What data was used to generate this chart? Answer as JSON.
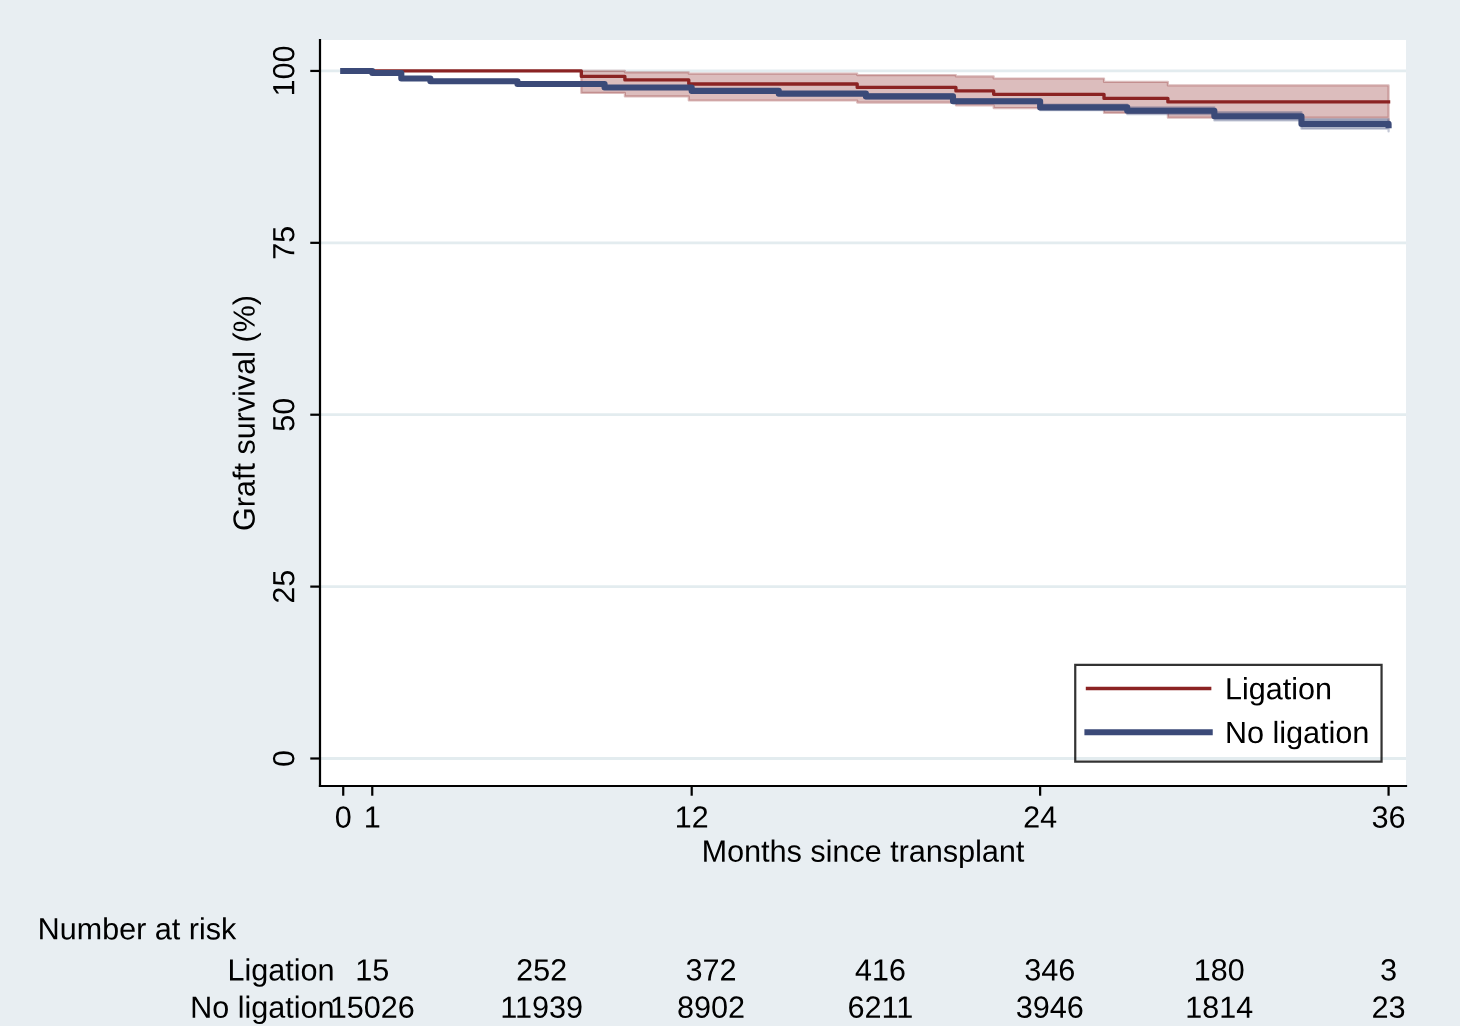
{
  "chart_data": {
    "type": "step",
    "xlabel": "Months since transplant",
    "ylabel": "Graft survival (%)",
    "xlim": [
      -0.8,
      36.6
    ],
    "ylim": [
      -4,
      104.5
    ],
    "xticks": [
      0,
      1,
      12,
      24,
      36
    ],
    "yticks": [
      0,
      25,
      50,
      75,
      100
    ],
    "grid": "y",
    "legend": "bottom right",
    "series": [
      {
        "name": "Ligation",
        "color": "#8b2323",
        "x": [
          0,
          8.2,
          9.7,
          11.9,
          17.7,
          21.1,
          22.4,
          26.2,
          28.4,
          36
        ],
        "values": [
          100,
          99.2,
          98.7,
          98.1,
          97.6,
          97.1,
          96.6,
          96.0,
          95.5,
          95.5
        ],
        "lower": [
          null,
          96.8,
          96.3,
          95.7,
          95.4,
          95.0,
          94.6,
          93.9,
          93.2,
          91.9
        ],
        "upper": [
          null,
          100,
          99.8,
          99.6,
          99.4,
          99.2,
          98.9,
          98.4,
          97.9,
          97.3
        ]
      },
      {
        "name": "No ligation",
        "color": "#3b4a78",
        "x": [
          0,
          1,
          2,
          3,
          6,
          9,
          12,
          15,
          18,
          21,
          24,
          27,
          30,
          33,
          36
        ],
        "values": [
          100,
          99.7,
          98.9,
          98.5,
          98.1,
          97.6,
          97.1,
          96.7,
          96.3,
          95.6,
          94.7,
          94.2,
          93.4,
          92.3,
          92.1
        ],
        "lower": [
          100,
          99.6,
          98.7,
          98.3,
          97.9,
          97.4,
          96.9,
          96.5,
          96.0,
          95.3,
          94.3,
          93.7,
          92.8,
          91.6,
          91.2
        ],
        "upper": [
          100,
          99.8,
          99.1,
          98.7,
          98.3,
          97.8,
          97.3,
          96.9,
          96.6,
          95.9,
          95.1,
          94.7,
          94.0,
          93.0,
          93.0
        ]
      }
    ],
    "annotations": [
      "Number at risk",
      "Ligation",
      "15",
      "252",
      "372",
      "416",
      "346",
      "180",
      "3",
      "No ligation",
      "15026",
      "11939",
      "8902",
      "6211",
      "3946",
      "1814",
      "23"
    ]
  }
}
